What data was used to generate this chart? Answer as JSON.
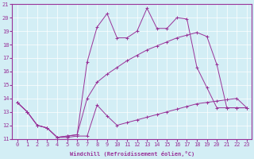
{
  "xlabel": "Windchill (Refroidissement éolien,°C)",
  "xlim": [
    -0.5,
    23.5
  ],
  "ylim": [
    11,
    21
  ],
  "yticks": [
    11,
    12,
    13,
    14,
    15,
    16,
    17,
    18,
    19,
    20,
    21
  ],
  "xticks": [
    0,
    1,
    2,
    3,
    4,
    5,
    6,
    7,
    8,
    9,
    10,
    11,
    12,
    13,
    14,
    15,
    16,
    17,
    18,
    19,
    20,
    21,
    22,
    23
  ],
  "bg_color": "#d3eef5",
  "line_color": "#993399",
  "line1_x": [
    0,
    1,
    2,
    3,
    4,
    5,
    6,
    7,
    8,
    9,
    10,
    11,
    12,
    13,
    14,
    15,
    16,
    17,
    18,
    19,
    20,
    21,
    22,
    23
  ],
  "line1_y": [
    13.7,
    13.0,
    12.0,
    11.8,
    11.1,
    11.1,
    11.2,
    11.2,
    13.5,
    12.7,
    12.0,
    12.2,
    12.4,
    12.6,
    12.8,
    13.0,
    13.2,
    13.4,
    13.6,
    13.7,
    13.8,
    13.9,
    14.0,
    13.3
  ],
  "line2_x": [
    0,
    1,
    2,
    3,
    4,
    5,
    6,
    7,
    8,
    9,
    10,
    11,
    12,
    13,
    14,
    15,
    16,
    17,
    18,
    19,
    20,
    21,
    22,
    23
  ],
  "line2_y": [
    13.7,
    13.0,
    12.0,
    11.8,
    11.1,
    11.2,
    11.3,
    16.7,
    19.3,
    20.3,
    18.5,
    18.5,
    19.0,
    20.7,
    19.2,
    19.2,
    20.0,
    19.9,
    16.3,
    14.8,
    13.3,
    13.3,
    13.3,
    13.3
  ],
  "line3_x": [
    0,
    1,
    2,
    3,
    4,
    5,
    6,
    7,
    8,
    9,
    10,
    11,
    12,
    13,
    14,
    15,
    16,
    17,
    18,
    19,
    20,
    21,
    22,
    23
  ],
  "line3_y": [
    13.7,
    13.0,
    12.0,
    11.8,
    11.1,
    11.2,
    11.3,
    14.0,
    15.2,
    15.8,
    16.3,
    16.8,
    17.2,
    17.6,
    17.9,
    18.2,
    18.5,
    18.7,
    18.9,
    18.6,
    16.5,
    13.3,
    13.3,
    13.3
  ]
}
